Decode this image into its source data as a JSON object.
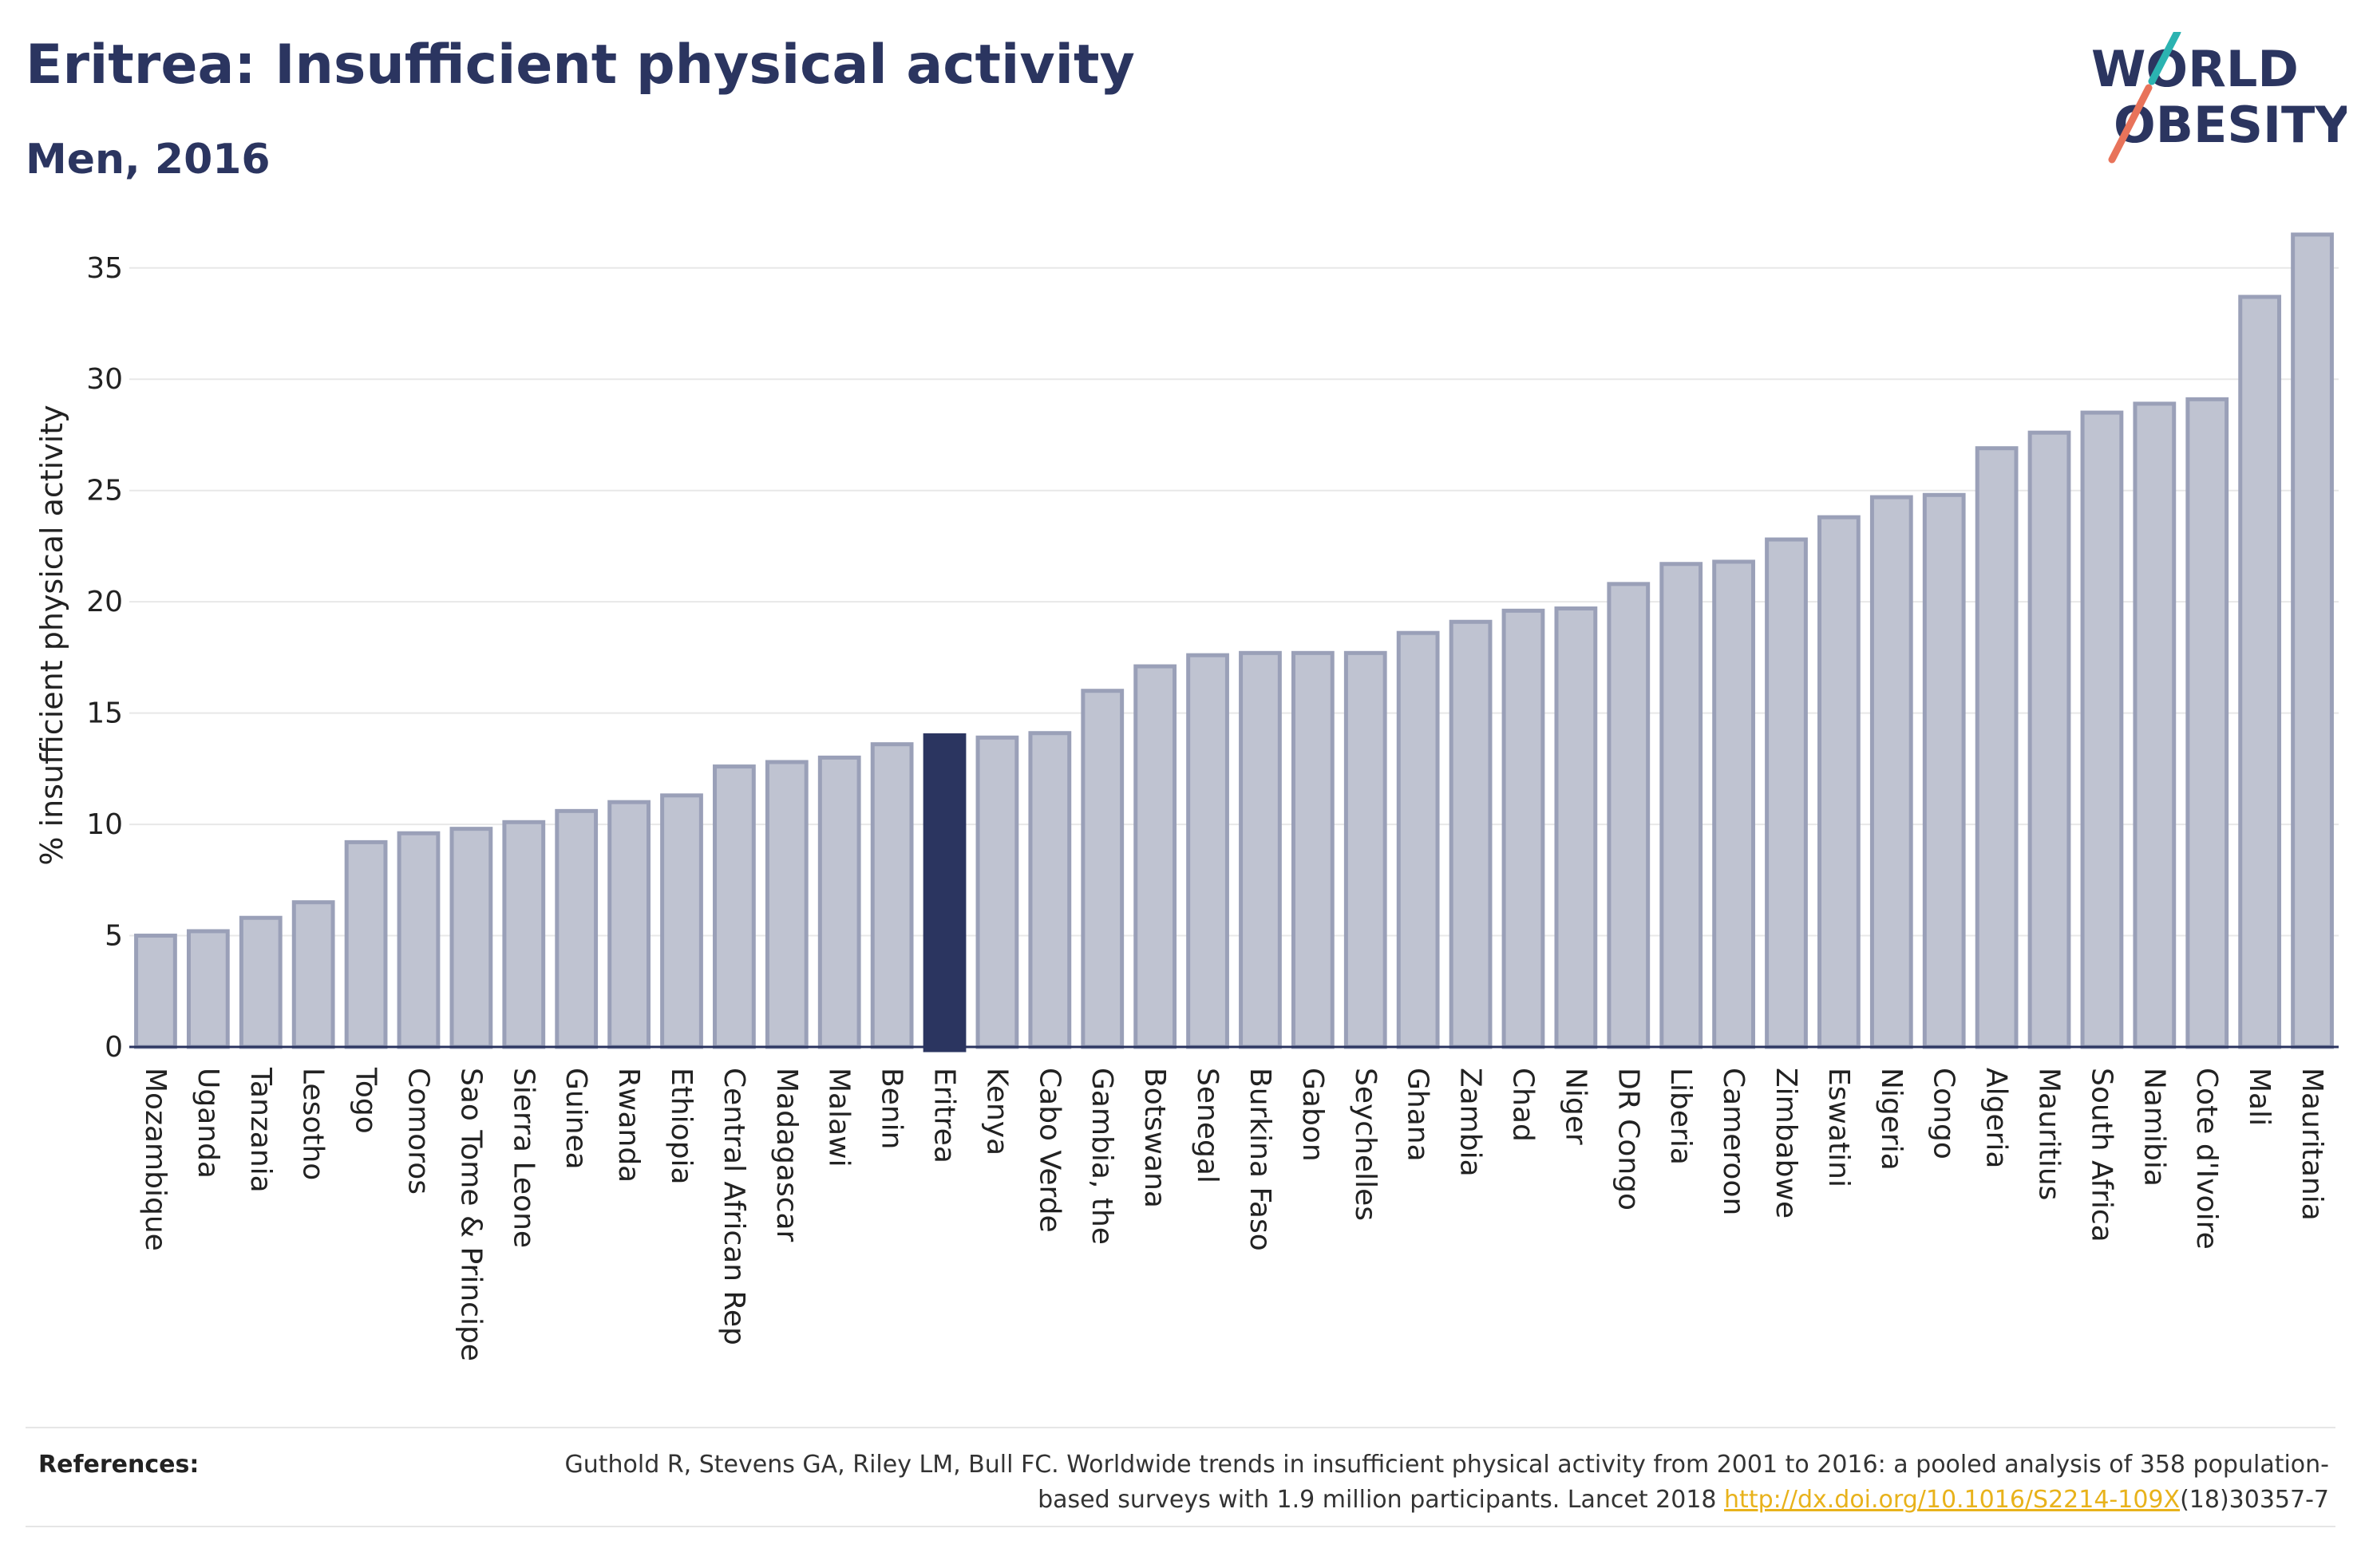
{
  "header": {
    "title": "Eritrea: Insufficient physical activity",
    "subtitle": "Men, 2016"
  },
  "logo": {
    "line1": "WORLD",
    "line2": "OBESITY",
    "colors": {
      "text": "#2b3560",
      "slash_teal": "#2bb3b1",
      "slash_coral": "#e8735a"
    }
  },
  "chart_data": {
    "type": "bar",
    "title": "Eritrea: Insufficient physical activity",
    "subtitle": "Men, 2016",
    "xlabel": "",
    "ylabel": "% insufficient physical activity",
    "ylim": [
      0,
      37
    ],
    "yticks": [
      0,
      5,
      10,
      15,
      20,
      25,
      30,
      35
    ],
    "grid": true,
    "highlight": "Eritrea",
    "colors": {
      "bar": "#bfc3d1",
      "bar_edge": "#9aa0b8",
      "highlight": "#2b3560",
      "grid": "#e8e8e8"
    },
    "categories": [
      "Mozambique",
      "Uganda",
      "Tanzania",
      "Lesotho",
      "Togo",
      "Comoros",
      "Sao Tome & Principe",
      "Sierra Leone",
      "Guinea",
      "Rwanda",
      "Ethiopia",
      "Central African Rep",
      "Madagascar",
      "Malawi",
      "Benin",
      "Eritrea",
      "Kenya",
      "Cabo Verde",
      "Gambia, the",
      "Botswana",
      "Senegal",
      "Burkina Faso",
      "Gabon",
      "Seychelles",
      "Ghana",
      "Zambia",
      "Chad",
      "Niger",
      "DR Congo",
      "Liberia",
      "Cameroon",
      "Zimbabwe",
      "Eswatini",
      "Nigeria",
      "Congo",
      "Algeria",
      "Mauritius",
      "South Africa",
      "Namibia",
      "Cote d'Ivoire",
      "Mali",
      "Mauritania"
    ],
    "values": [
      5.0,
      5.2,
      5.8,
      6.5,
      9.2,
      9.6,
      9.8,
      10.1,
      10.6,
      11.0,
      11.3,
      12.6,
      12.8,
      13.0,
      13.6,
      14.0,
      13.9,
      14.1,
      16.0,
      17.1,
      17.6,
      17.7,
      17.7,
      17.7,
      18.6,
      19.1,
      19.6,
      19.7,
      20.8,
      21.7,
      21.8,
      22.8,
      23.8,
      24.7,
      24.8,
      26.9,
      27.6,
      28.5,
      28.9,
      29.1,
      33.7,
      36.5
    ]
  },
  "references": {
    "label": "References:",
    "text_before": "Guthold R, Stevens GA, Riley LM, Bull FC. Worldwide trends in insufficient physical activity from 2001 to 2016: a pooled analysis of 358 population-based surveys with 1.9 million participants. Lancet 2018 ",
    "link": "http://dx.doi.org/10.1016/S2214-109X",
    "text_after": "(18)30357-7"
  }
}
